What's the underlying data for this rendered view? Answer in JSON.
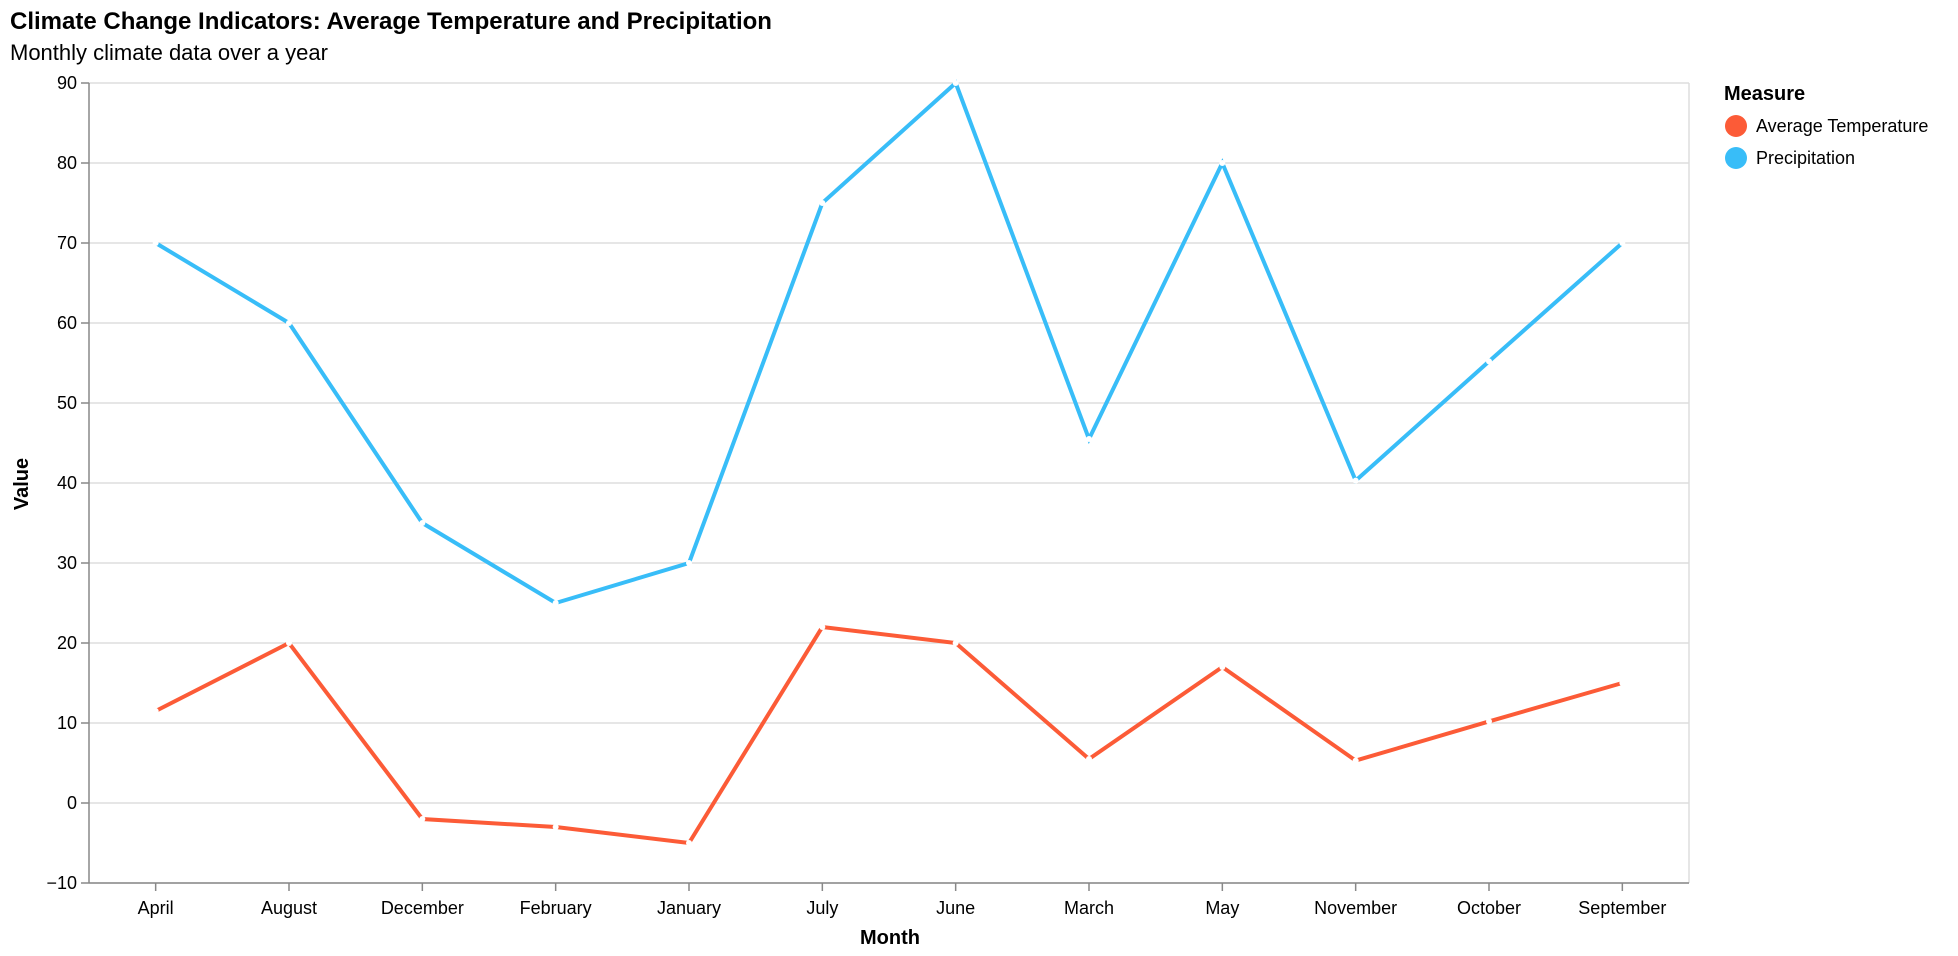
{
  "chart_data": {
    "type": "line",
    "title": "Climate Change Indicators: Average Temperature and Precipitation",
    "subtitle": "Monthly climate data over a year",
    "xlabel": "Month",
    "ylabel": "Value",
    "categories": [
      "April",
      "August",
      "December",
      "February",
      "January",
      "July",
      "June",
      "March",
      "May",
      "November",
      "October",
      "September"
    ],
    "ylim": [
      -10,
      90
    ],
    "yticks": [
      -10,
      0,
      10,
      20,
      30,
      40,
      50,
      60,
      70,
      80,
      90
    ],
    "grid": true,
    "legend": {
      "title": "Measure",
      "placement": "top-right"
    },
    "series": [
      {
        "name": "Average Temperature",
        "color": "#fc5b37",
        "values": [
          11.5,
          20,
          -2,
          -3,
          -5,
          22,
          20,
          5.5,
          17,
          5.3,
          10.2,
          15
        ]
      },
      {
        "name": "Precipitation",
        "color": "#38bdf8",
        "values": [
          70,
          60,
          35,
          25,
          30,
          75,
          90,
          45.5,
          80,
          40.3,
          55.2,
          70
        ]
      }
    ]
  }
}
